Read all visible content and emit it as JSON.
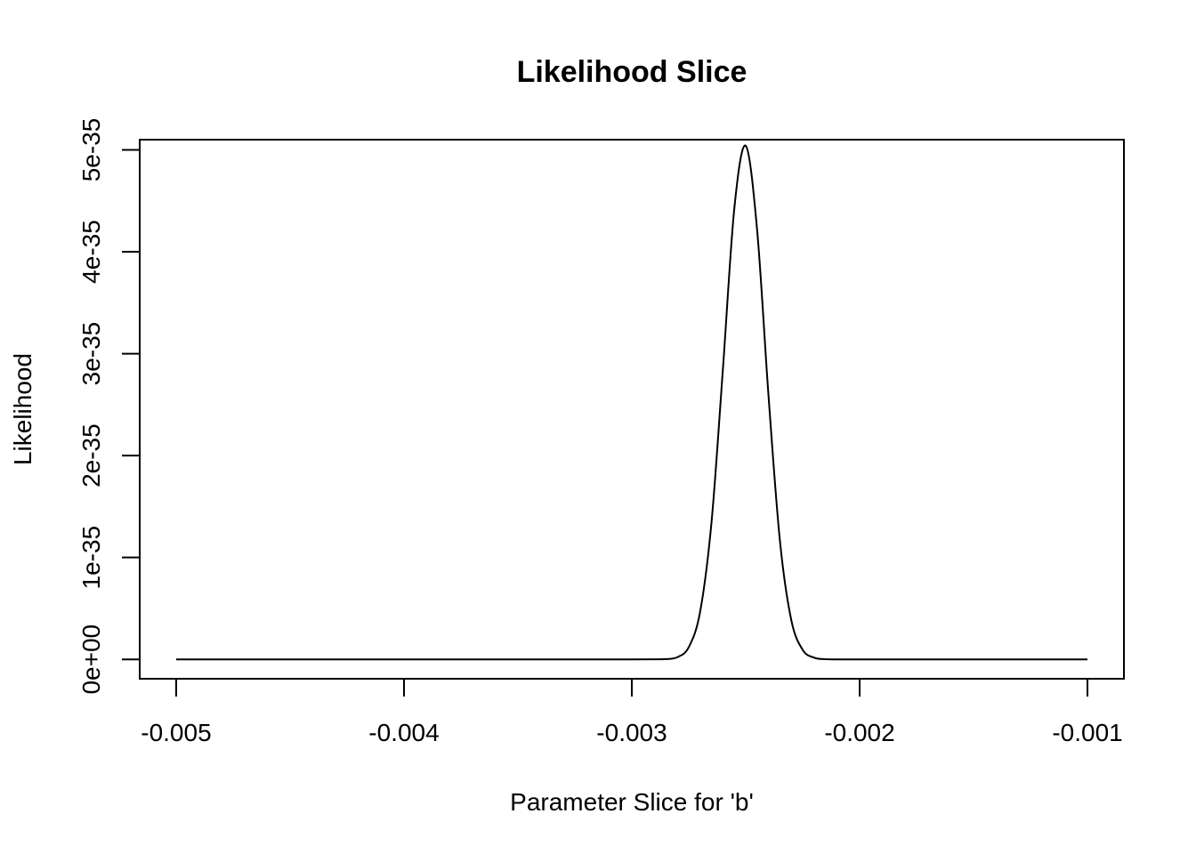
{
  "chart_data": {
    "type": "line",
    "title": "Likelihood Slice",
    "xlabel": "Parameter Slice for 'b'",
    "ylabel": "Likelihood",
    "xlim": [
      -0.00516,
      -0.00084
    ],
    "ylim": [
      -1.9e-36,
      5.1e-35
    ],
    "x_ticks": [
      -0.005,
      -0.004,
      -0.003,
      -0.002,
      -0.001
    ],
    "x_tick_labels": [
      "-0.005",
      "-0.004",
      "-0.003",
      "-0.002",
      "-0.001"
    ],
    "y_ticks": [
      0,
      1e-35,
      2e-35,
      3e-35,
      4e-35,
      5e-35
    ],
    "y_tick_labels": [
      "0e+00",
      "1e-35",
      "2e-35",
      "3e-35",
      "4e-35",
      "5e-35"
    ],
    "grid": false,
    "legend": "none",
    "colors": {
      "line": "#000000",
      "axes": "#000000",
      "background": "#ffffff"
    },
    "series": [
      {
        "x": [
          -0.005,
          -0.0048,
          -0.0046,
          -0.0044,
          -0.0042,
          -0.004,
          -0.0038,
          -0.0036,
          -0.0034,
          -0.0032,
          -0.003,
          -0.0029,
          -0.00285,
          -0.0028,
          -0.00275,
          -0.0027,
          -0.00265,
          -0.0026,
          -0.00255,
          -0.0025,
          -0.00245,
          -0.0024,
          -0.00235,
          -0.0023,
          -0.00225,
          -0.0022,
          -0.00215,
          -0.0021,
          -0.00205,
          -0.002,
          -0.00195,
          -0.0019,
          -0.0018,
          -0.0016,
          -0.0014,
          -0.0012,
          -0.001
        ],
        "values": [
          0,
          0,
          0,
          0,
          0,
          0,
          0,
          0,
          0,
          0,
          0,
          1e-38,
          3e-38,
          2.2e-37,
          1.2e-36,
          4.7e-36,
          1.351e-35,
          2.854e-35,
          4.427e-35,
          5.04e-35,
          4.214e-35,
          2.587e-35,
          1.166e-35,
          3.86e-36,
          9.4e-37,
          1.7e-37,
          2e-38,
          0,
          0,
          0,
          0,
          0,
          0,
          0,
          0,
          0,
          0
        ]
      }
    ]
  }
}
